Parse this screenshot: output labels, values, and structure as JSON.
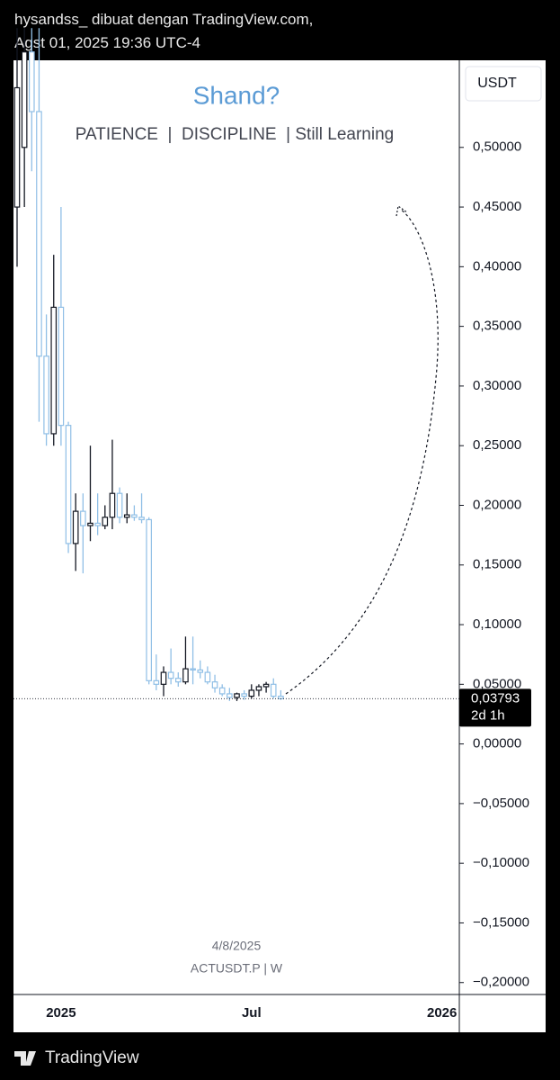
{
  "header": {
    "line1": "hysandss_ dibuat dengan TradingView.com,",
    "line2": "Agst 01, 2025 19:36 UTC-4"
  },
  "footer": {
    "brand": "TradingView"
  },
  "chart_data": {
    "type": "candlestick",
    "title": "Shand?",
    "subtitle": "PATIENCE  |  DISCIPLINE  | Still Learning",
    "y_unit": "USDT",
    "watermark_date": "4/8/2025",
    "watermark_symbol": "ACTUSDT.P | W",
    "categories": [
      null,
      null,
      null,
      null,
      null,
      null,
      "2025",
      null,
      null,
      null,
      null,
      null,
      null,
      null,
      null,
      null,
      null,
      null,
      null,
      null,
      null,
      null,
      null,
      null,
      null,
      null,
      null,
      null,
      null,
      null,
      null,
      null,
      "Jul",
      null,
      null,
      null,
      null,
      null,
      null,
      null,
      null,
      null,
      null,
      null,
      null,
      null,
      null,
      null,
      null,
      null,
      null,
      null,
      null,
      null,
      null,
      null,
      null,
      null,
      "2026",
      null
    ],
    "open": [
      0.45,
      0.5,
      0.58,
      0.53,
      0.325,
      0.26,
      0.366,
      0.267,
      0.168,
      0.195,
      0.183,
      0.185,
      0.183,
      0.19,
      0.21,
      0.19,
      0.192,
      0.19,
      0.188,
      0.053,
      0.05,
      0.06,
      0.055,
      0.052,
      0.063,
      0.062,
      0.06,
      0.052,
      0.047,
      0.042,
      0.039,
      0.042,
      0.04,
      0.045,
      0.048,
      0.05,
      0.04,
      null,
      null,
      null,
      null,
      null,
      null,
      null,
      null,
      null,
      null,
      null,
      null,
      null,
      null,
      null,
      null,
      null,
      null,
      null,
      null,
      null,
      null,
      null
    ],
    "high": [
      0.6,
      0.6,
      0.6,
      0.6,
      0.36,
      0.41,
      0.45,
      0.27,
      0.21,
      0.21,
      0.25,
      0.21,
      0.2,
      0.255,
      0.215,
      0.21,
      0.2,
      0.21,
      0.19,
      0.075,
      0.065,
      0.08,
      0.06,
      0.09,
      0.09,
      0.07,
      0.065,
      0.058,
      0.05,
      0.047,
      0.043,
      0.045,
      0.05,
      0.05,
      0.052,
      0.055,
      0.045,
      null,
      null,
      null,
      null,
      null,
      null,
      null,
      null,
      null,
      null,
      null,
      null,
      null,
      null,
      null,
      null,
      null,
      null,
      null,
      null,
      null,
      null,
      null
    ],
    "low": [
      0.4,
      0.45,
      0.48,
      0.27,
      0.25,
      0.25,
      0.25,
      0.16,
      0.145,
      0.143,
      0.17,
      0.175,
      0.18,
      0.18,
      0.185,
      0.185,
      0.187,
      0.185,
      0.05,
      0.045,
      0.04,
      0.05,
      0.048,
      0.05,
      0.05,
      0.055,
      0.05,
      0.043,
      0.04,
      0.036,
      0.036,
      0.037,
      0.038,
      0.04,
      0.043,
      0.038,
      0.037,
      null,
      null,
      null,
      null,
      null,
      null,
      null,
      null,
      null,
      null,
      null,
      null,
      null,
      null,
      null,
      null,
      null,
      null,
      null,
      null,
      null,
      null,
      null
    ],
    "close": [
      0.55,
      0.58,
      0.53,
      0.325,
      0.26,
      0.366,
      0.267,
      0.168,
      0.195,
      0.183,
      0.185,
      0.183,
      0.19,
      0.21,
      0.19,
      0.192,
      0.19,
      0.188,
      0.053,
      0.05,
      0.06,
      0.055,
      0.052,
      0.063,
      0.062,
      0.06,
      0.052,
      0.047,
      0.042,
      0.039,
      0.042,
      0.04,
      0.045,
      0.048,
      0.05,
      0.04,
      0.03793,
      null,
      null,
      null,
      null,
      null,
      null,
      null,
      null,
      null,
      null,
      null,
      null,
      null,
      null,
      null,
      null,
      null,
      null,
      null,
      null,
      null,
      null,
      null
    ],
    "up_color": "#131722",
    "down_color": "#90bfe6",
    "ylim": [
      -0.21,
      0.573
    ],
    "yticks": [
      {
        "value": 0.5,
        "label": "0,50000"
      },
      {
        "value": 0.45,
        "label": "0,45000"
      },
      {
        "value": 0.4,
        "label": "0,40000"
      },
      {
        "value": 0.35,
        "label": "0,35000"
      },
      {
        "value": 0.3,
        "label": "0,30000"
      },
      {
        "value": 0.25,
        "label": "0,25000"
      },
      {
        "value": 0.2,
        "label": "0,20000"
      },
      {
        "value": 0.15,
        "label": "0,15000"
      },
      {
        "value": 0.1,
        "label": "0,10000"
      },
      {
        "value": 0.05,
        "label": "0,05000"
      },
      {
        "value": 0,
        "label": "0,00000"
      },
      {
        "value": -0.05,
        "label": "−0,05000"
      },
      {
        "value": -0.1,
        "label": "−0,10000"
      },
      {
        "value": -0.15,
        "label": "−0,15000"
      },
      {
        "value": -0.2,
        "label": "−0,20000"
      }
    ],
    "last_price": {
      "value": 0.03793,
      "label": "0,03793"
    },
    "countdown": "2d 1h",
    "grid": false
  }
}
